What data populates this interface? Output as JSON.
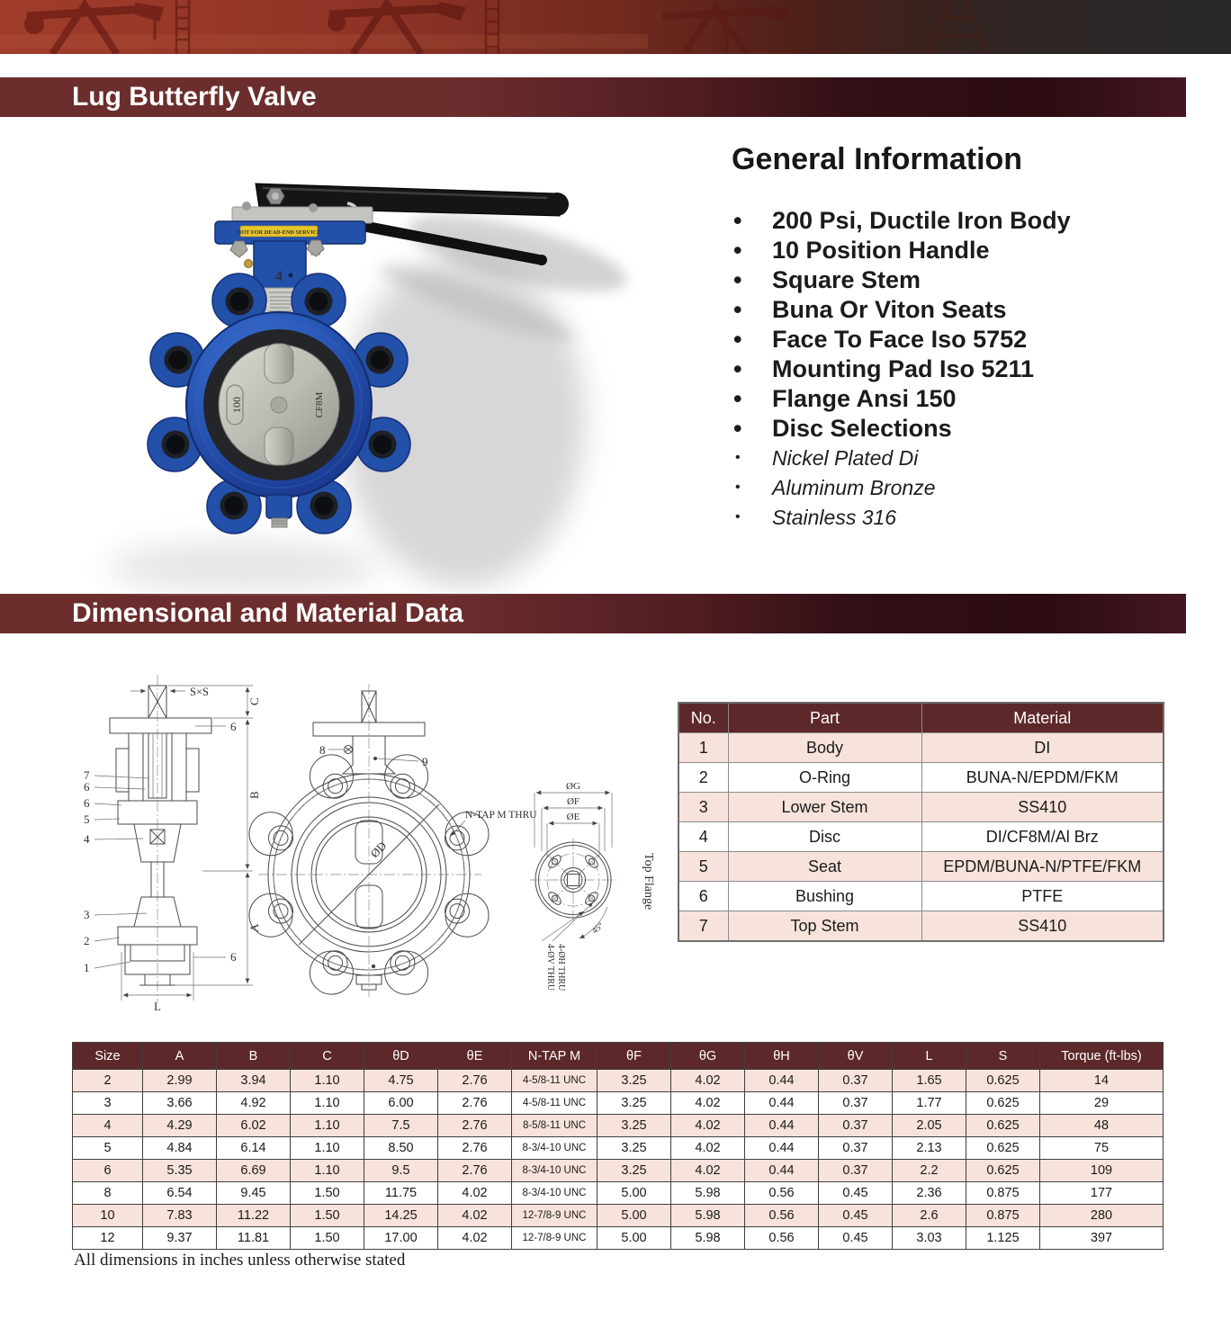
{
  "page": {
    "section1_title": "Lug Butterfly Valve",
    "section2_title": "Dimensional and Material Data",
    "footnote": "All dimensions in inches unless otherwise stated"
  },
  "general_info": {
    "heading": "General Information",
    "features": [
      "200 Psi, Ductile Iron Body",
      "10 Position Handle",
      "Square Stem",
      "Buna Or Viton Seats",
      "Face To Face Iso 5752",
      "Mounting Pad Iso 5211",
      "Flange Ansi 150",
      "Disc Selections"
    ],
    "disc_options": [
      "Nickel Plated Di",
      "Aluminum Bronze",
      "Stainless 316"
    ]
  },
  "photo": {
    "warning_label": "NOT FOR DEAD-END SERVICE",
    "disc_mark_left": "100",
    "disc_mark_right": "CF8M",
    "neck_mark": "4"
  },
  "drawings": {
    "left": {
      "sxs": "S×S",
      "c": "C",
      "b": "B",
      "a": "A",
      "l": "L",
      "n1": "1",
      "n2": "2",
      "n3": "3",
      "n4": "4",
      "n5": "5",
      "n6": "6",
      "n7": "7"
    },
    "front": {
      "n8": "8",
      "n9": "9",
      "ntap": "N-TAP M  THRU",
      "od": "ØD"
    },
    "flange": {
      "og": "ØG",
      "of": "ØF",
      "oe": "ØE",
      "title": "Top Flange",
      "h4": "4-ØH THRU",
      "v4": "4-ØV THRU",
      "angle": "45°"
    }
  },
  "material_table": {
    "headers": [
      "No.",
      "Part",
      "Material"
    ],
    "rows": [
      [
        "1",
        "Body",
        "DI"
      ],
      [
        "2",
        "O-Ring",
        "BUNA-N/EPDM/FKM"
      ],
      [
        "3",
        "Lower Stem",
        "SS410"
      ],
      [
        "4",
        "Disc",
        "DI/CF8M/Al Brz"
      ],
      [
        "5",
        "Seat",
        "EPDM/BUNA-N/PTFE/FKM"
      ],
      [
        "6",
        "Bushing",
        "PTFE"
      ],
      [
        "7",
        "Top Stem",
        "SS410"
      ]
    ]
  },
  "dimension_table": {
    "headers": [
      "Size",
      "A",
      "B",
      "C",
      "θD",
      "θE",
      "N-TAP M",
      "θF",
      "θG",
      "θH",
      "θV",
      "L",
      "S",
      "Torque (ft-lbs)"
    ],
    "rows": [
      [
        "2",
        "2.99",
        "3.94",
        "1.10",
        "4.75",
        "2.76",
        "4-5/8-11 UNC",
        "3.25",
        "4.02",
        "0.44",
        "0.37",
        "1.65",
        "0.625",
        "14"
      ],
      [
        "3",
        "3.66",
        "4.92",
        "1.10",
        "6.00",
        "2.76",
        "4-5/8-11 UNC",
        "3.25",
        "4.02",
        "0.44",
        "0.37",
        "1.77",
        "0.625",
        "29"
      ],
      [
        "4",
        "4.29",
        "6.02",
        "1.10",
        "7.5",
        "2.76",
        "8-5/8-11 UNC",
        "3.25",
        "4.02",
        "0.44",
        "0.37",
        "2.05",
        "0.625",
        "48"
      ],
      [
        "5",
        "4.84",
        "6.14",
        "1.10",
        "8.50",
        "2.76",
        "8-3/4-10 UNC",
        "3.25",
        "4.02",
        "0.44",
        "0.37",
        "2.13",
        "0.625",
        "75"
      ],
      [
        "6",
        "5.35",
        "6.69",
        "1.10",
        "9.5",
        "2.76",
        "8-3/4-10 UNC",
        "3.25",
        "4.02",
        "0.44",
        "0.37",
        "2.2",
        "0.625",
        "109"
      ],
      [
        "8",
        "6.54",
        "9.45",
        "1.50",
        "11.75",
        "4.02",
        "8-3/4-10 UNC",
        "5.00",
        "5.98",
        "0.56",
        "0.45",
        "2.36",
        "0.875",
        "177"
      ],
      [
        "10",
        "7.83",
        "11.22",
        "1.50",
        "14.25",
        "4.02",
        "12-7/8-9 UNC",
        "5.00",
        "5.98",
        "0.56",
        "0.45",
        "2.6",
        "0.875",
        "280"
      ],
      [
        "12",
        "9.37",
        "11.81",
        "1.50",
        "17.00",
        "4.02",
        "12-7/8-9 UNC",
        "5.00",
        "5.98",
        "0.56",
        "0.45",
        "3.03",
        "1.125",
        "397"
      ]
    ]
  }
}
